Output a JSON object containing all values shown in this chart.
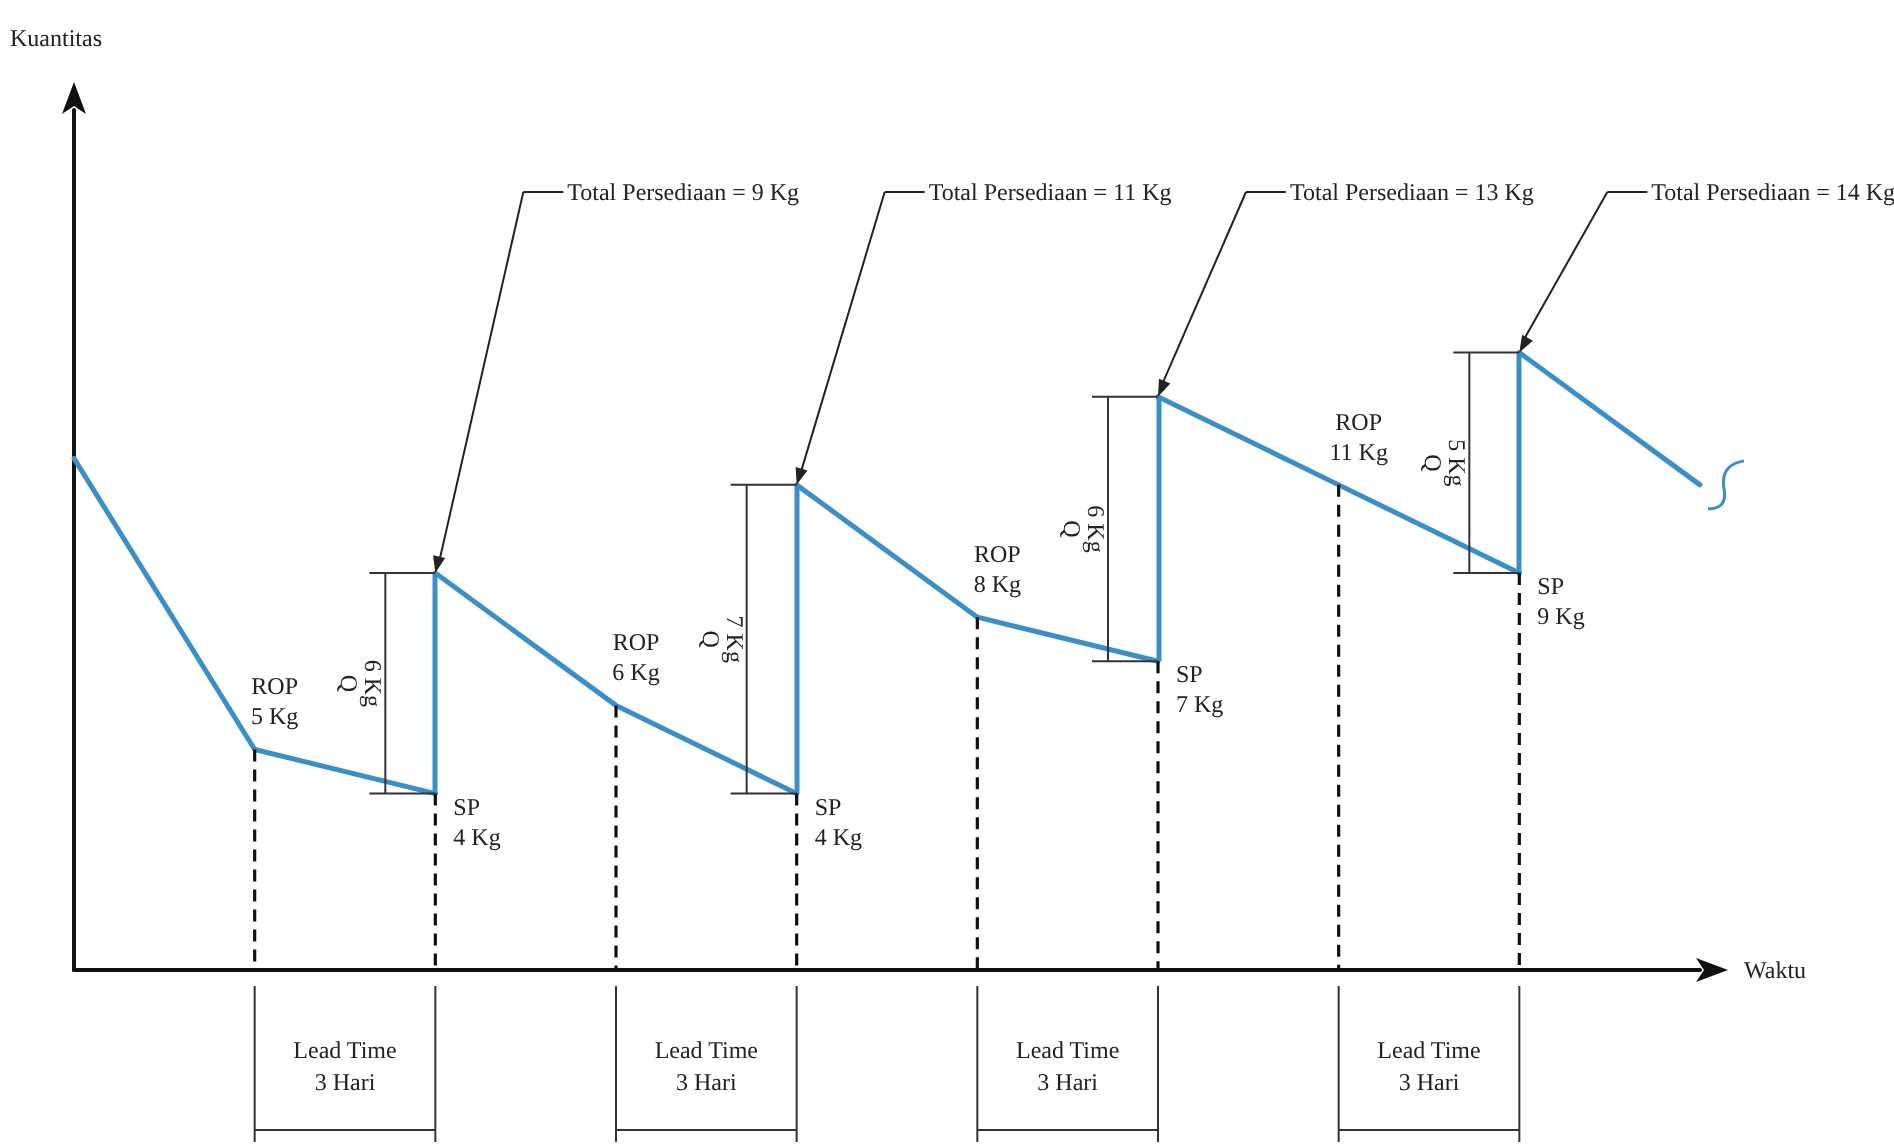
{
  "chart_data": {
    "type": "line",
    "xlabel": "Waktu",
    "ylabel": "Kuantitas",
    "categories": [
      null,
      null,
      null,
      null,
      null,
      null,
      null,
      null,
      null,
      null
    ],
    "ylim": [
      0,
      19.5
    ],
    "tick_labels": false,
    "marker": "none",
    "line_style": "solid",
    "series": [
      {
        "color": "#3a8fc7",
        "values": [
          11.6,
          5,
          4,
          null,
          null,
          null,
          null,
          null,
          null,
          null
        ],
        "value_labels": [
          null,
          "ROP 5 Kg",
          "SP 4 Kg",
          null,
          null,
          null,
          null,
          null,
          null,
          null
        ]
      },
      {
        "color": "#3a8fc7",
        "values": [
          null,
          null,
          9,
          6,
          4,
          null,
          null,
          null,
          null,
          null
        ],
        "value_labels": [
          null,
          null,
          null,
          "ROP 6 Kg",
          "SP 4 Kg",
          null,
          null,
          null,
          null,
          null
        ]
      },
      {
        "color": "#3a8fc7",
        "values": [
          null,
          null,
          null,
          null,
          11,
          8,
          7,
          null,
          null,
          null
        ],
        "value_labels": [
          null,
          null,
          null,
          null,
          null,
          "ROP 8 Kg",
          "SP 7 Kg",
          null,
          null,
          null
        ]
      },
      {
        "color": "#3a8fc7",
        "values": [
          null,
          null,
          null,
          null,
          null,
          null,
          13,
          11,
          9,
          null
        ],
        "value_labels": [
          null,
          null,
          null,
          null,
          null,
          null,
          null,
          "ROP 11 Kg",
          "SP 9 Kg",
          null
        ]
      },
      {
        "color": "#3a8fc7",
        "values": [
          null,
          null,
          null,
          null,
          null,
          null,
          null,
          null,
          14,
          11
        ]
      }
    ],
    "annotations": [
      "Total Persediaan = 9 Kg",
      "Total Persediaan = 11 Kg",
      "Total Persediaan = 13 Kg",
      "Total Persediaan = 14 Kg",
      "Q 6 Kg",
      "Q 7 Kg",
      "Q 6 Kg",
      "Q 5 Kg",
      "Lead Time 3 Hari",
      "Lead Time 3 Hari",
      "Lead Time 3 Hari",
      "Lead Time 3 Hari"
    ]
  }
}
